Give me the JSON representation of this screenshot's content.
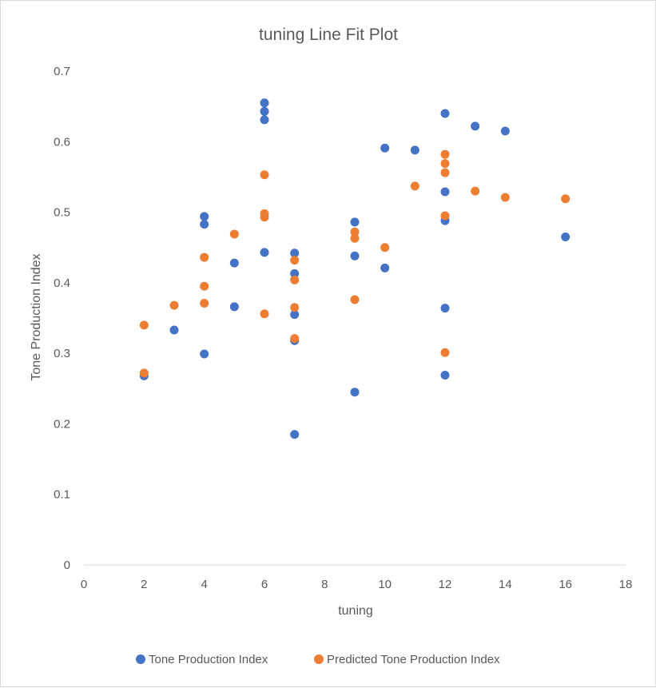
{
  "chart_data": {
    "type": "scatter",
    "title": "tuning Line Fit  Plot",
    "xlabel": "tuning",
    "ylabel": "Tone Production Index",
    "xlim": [
      0,
      18
    ],
    "ylim": [
      0,
      0.7
    ],
    "xticks": [
      0,
      2,
      4,
      6,
      8,
      10,
      12,
      14,
      16,
      18
    ],
    "yticks": [
      0,
      0.1,
      0.2,
      0.3,
      0.4,
      0.5,
      0.6,
      0.7
    ],
    "xtick_labels": [
      "0",
      "2",
      "4",
      "6",
      "8",
      "10",
      "12",
      "14",
      "16",
      "18"
    ],
    "ytick_labels": [
      "0",
      "0.1",
      "0.2",
      "0.3",
      "0.4",
      "0.5",
      "0.6",
      "0.7"
    ],
    "grid": false,
    "legend_position": "bottom",
    "series": [
      {
        "name": "Tone Production Index",
        "color": "#4472c4",
        "x": [
          2,
          3,
          4,
          4,
          4,
          5,
          5,
          6,
          6,
          6,
          6,
          7,
          7,
          7,
          7,
          7,
          9,
          9,
          9,
          10,
          10,
          11,
          12,
          12,
          12,
          12,
          12,
          13,
          14,
          16
        ],
        "y": [
          0.268,
          0.333,
          0.299,
          0.483,
          0.494,
          0.428,
          0.366,
          0.655,
          0.643,
          0.631,
          0.443,
          0.442,
          0.413,
          0.355,
          0.318,
          0.185,
          0.486,
          0.438,
          0.245,
          0.591,
          0.421,
          0.588,
          0.64,
          0.529,
          0.488,
          0.364,
          0.269,
          0.622,
          0.615,
          0.465
        ]
      },
      {
        "name": "Predicted Tone Production Index",
        "color": "#ed7d31",
        "x": [
          2,
          2,
          3,
          4,
          4,
          4,
          5,
          6,
          6,
          6,
          6,
          7,
          7,
          7,
          7,
          9,
          9,
          9,
          10,
          11,
          12,
          12,
          12,
          12,
          12,
          13,
          14,
          16
        ],
        "y": [
          0.34,
          0.272,
          0.368,
          0.436,
          0.395,
          0.371,
          0.469,
          0.553,
          0.498,
          0.493,
          0.356,
          0.432,
          0.404,
          0.365,
          0.321,
          0.472,
          0.463,
          0.376,
          0.45,
          0.537,
          0.582,
          0.569,
          0.556,
          0.495,
          0.301,
          0.53,
          0.521,
          0.519
        ]
      }
    ]
  }
}
